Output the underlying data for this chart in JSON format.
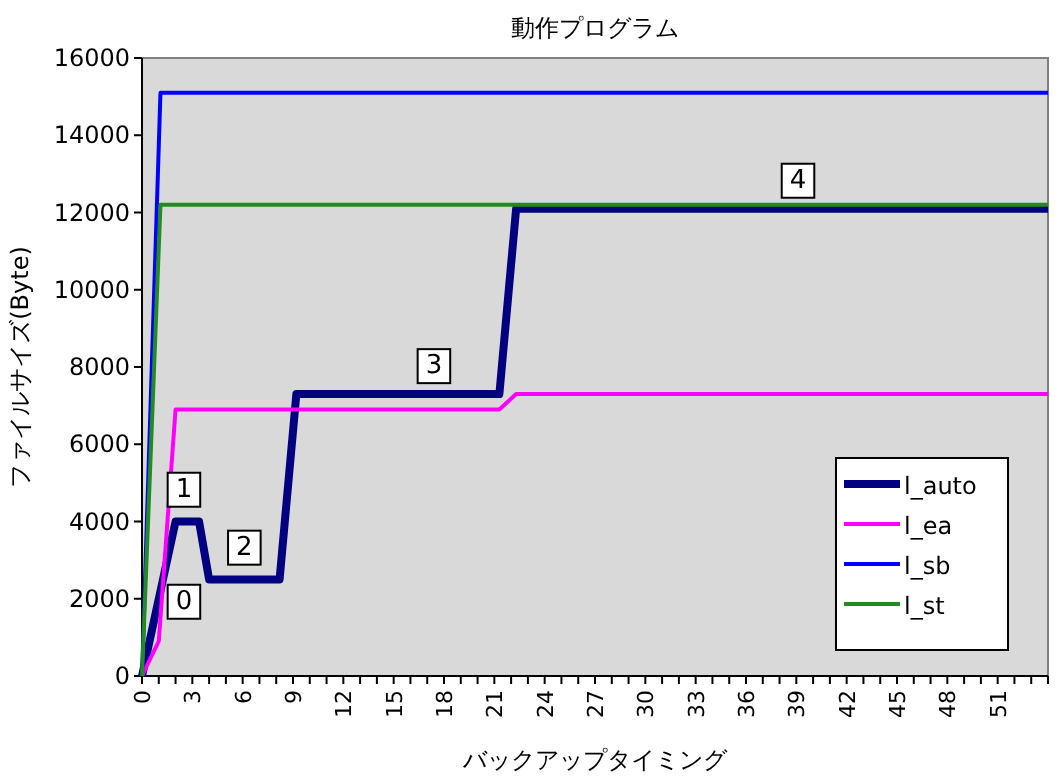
{
  "chart_data": {
    "type": "line",
    "title": "動作プログラム",
    "xlabel": "バックアップタイミング",
    "ylabel": "ファイルサイズ(Byte)",
    "xlim": [
      0,
      54
    ],
    "ylim": [
      0,
      16000
    ],
    "xticks": [
      0,
      {
        "value": 1,
        "label": null
      },
      {
        "value": 2,
        "label": null
      },
      3,
      {
        "value": 4,
        "label": null
      },
      {
        "value": 5,
        "label": null
      },
      6,
      {
        "value": 7,
        "label": null
      },
      {
        "value": 8,
        "label": null
      },
      9,
      {
        "value": 10,
        "label": null
      },
      {
        "value": 11,
        "label": null
      },
      12,
      {
        "value": 13,
        "label": null
      },
      {
        "value": 14,
        "label": null
      },
      15,
      {
        "value": 16,
        "label": null
      },
      {
        "value": 17,
        "label": null
      },
      18,
      {
        "value": 19,
        "label": null
      },
      {
        "value": 20,
        "label": null
      },
      21,
      {
        "value": 22,
        "label": null
      },
      {
        "value": 23,
        "label": null
      },
      24,
      {
        "value": 25,
        "label": null
      },
      {
        "value": 26,
        "label": null
      },
      27,
      {
        "value": 28,
        "label": null
      },
      {
        "value": 29,
        "label": null
      },
      30,
      {
        "value": 31,
        "label": null
      },
      {
        "value": 32,
        "label": null
      },
      33,
      {
        "value": 34,
        "label": null
      },
      {
        "value": 35,
        "label": null
      },
      36,
      {
        "value": 37,
        "label": null
      },
      {
        "value": 38,
        "label": null
      },
      39,
      {
        "value": 40,
        "label": null
      },
      {
        "value": 41,
        "label": null
      },
      42,
      {
        "value": 43,
        "label": null
      },
      {
        "value": 44,
        "label": null
      },
      45,
      {
        "value": 46,
        "label": null
      },
      {
        "value": 47,
        "label": null
      },
      48,
      {
        "value": 49,
        "label": null
      },
      {
        "value": 50,
        "label": null
      },
      51,
      {
        "value": 52,
        "label": null
      },
      {
        "value": 53,
        "label": null
      },
      {
        "value": 54,
        "label": null
      }
    ],
    "yticks": [
      0,
      2000,
      4000,
      6000,
      8000,
      10000,
      12000,
      14000,
      16000
    ],
    "grid": false,
    "legend": "bottom right",
    "marker": "none",
    "line_style": "solid",
    "series": [
      {
        "name": "l_auto",
        "color": "#000080",
        "x": [
          0,
          2,
          3.4,
          4,
          8.2,
          9.2,
          21.3,
          22.3,
          54
        ],
        "values": [
          0,
          4000,
          4000,
          2500,
          2500,
          7300,
          7300,
          12100,
          12100
        ]
      },
      {
        "name": "l_ea",
        "color": "#ff00ff",
        "x": [
          0,
          1,
          2,
          21.3,
          22.3,
          54
        ],
        "values": [
          0,
          900,
          6900,
          6900,
          7300,
          7300
        ]
      },
      {
        "name": "l_sb",
        "color": "#0000ff",
        "x": [
          0,
          1.1,
          54
        ],
        "values": [
          0,
          15100,
          15100
        ]
      },
      {
        "name": "l_st",
        "color": "#228b22",
        "x": [
          0,
          1.1,
          54
        ],
        "values": [
          0,
          12200,
          12200
        ]
      }
    ],
    "annotations": [
      {
        "text": "0",
        "x": 2.5,
        "y": 2000
      },
      {
        "text": "1",
        "x": 2.5,
        "y": 4900
      },
      {
        "text": "2",
        "x": 6.1,
        "y": 3400
      },
      {
        "text": "3",
        "x": 17.4,
        "y": 8100
      },
      {
        "text": "4",
        "x": 39.1,
        "y": 12900
      }
    ]
  }
}
